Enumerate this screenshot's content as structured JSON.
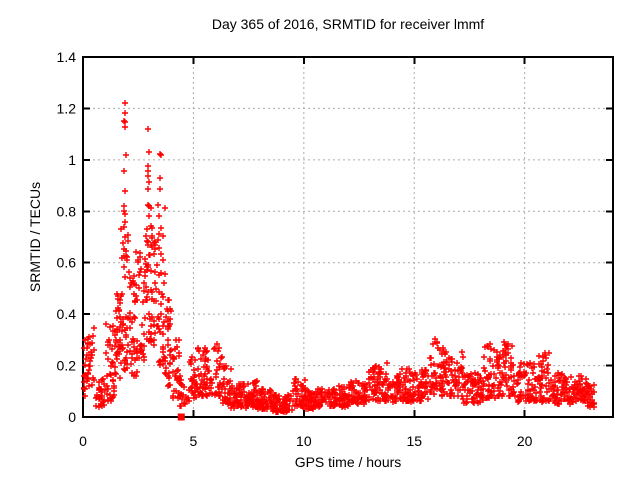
{
  "chart_data": {
    "type": "scatter",
    "title": "Day 365 of 2016, SRMTID for receiver lmmf",
    "xlabel": "GPS time / hours",
    "ylabel": "SRMTID / TECUs",
    "xlim": [
      0,
      24
    ],
    "ylim": [
      0,
      1.4
    ],
    "xticks": [
      0,
      5,
      10,
      15,
      20
    ],
    "xtick_labels": [
      "0",
      "5",
      "10",
      "15",
      "20"
    ],
    "yticks": [
      0,
      0.2,
      0.4,
      0.6,
      0.8,
      1.0,
      1.2,
      1.4
    ],
    "ytick_labels": [
      "0",
      "0.2",
      "0.4",
      "0.6",
      "0.8",
      "1",
      "1.2",
      "1.4"
    ],
    "grid": true,
    "grid_style": "dashed",
    "legend": "none",
    "marker": "plus",
    "colors": {
      "marker": "#ff0000",
      "grid": "#ababab",
      "border": "#000000",
      "background": "#ffffff",
      "text": "#000000"
    },
    "bands_format": "[t_start_hours, t_end_hours, n_points, y_min_TECU, y_max_TECU, skew_toward_min]",
    "bands": [
      [
        0.0,
        0.15,
        12,
        0.06,
        0.32,
        1.0
      ],
      [
        0.15,
        0.55,
        30,
        0.12,
        0.36,
        1.2
      ],
      [
        0.55,
        1.0,
        28,
        0.04,
        0.16,
        1.4
      ],
      [
        1.0,
        1.45,
        35,
        0.06,
        0.42,
        1.2
      ],
      [
        1.45,
        1.8,
        40,
        0.14,
        0.48,
        1.1
      ],
      [
        1.8,
        2.1,
        32,
        0.18,
        0.8,
        1.5
      ],
      [
        2.1,
        2.45,
        35,
        0.16,
        0.55,
        1.3
      ],
      [
        2.45,
        2.8,
        30,
        0.22,
        0.65,
        1.2
      ],
      [
        2.8,
        3.1,
        30,
        0.28,
        0.88,
        1.4
      ],
      [
        3.1,
        3.45,
        30,
        0.28,
        0.75,
        1.2
      ],
      [
        3.45,
        3.7,
        25,
        0.2,
        0.85,
        1.4
      ],
      [
        3.7,
        4.0,
        30,
        0.12,
        0.48,
        1.3
      ],
      [
        4.0,
        4.35,
        25,
        0.06,
        0.3,
        1.4
      ],
      [
        4.35,
        4.75,
        18,
        0.04,
        0.16,
        1.3
      ],
      [
        4.75,
        5.2,
        28,
        0.06,
        0.24,
        1.3
      ],
      [
        5.2,
        6.3,
        80,
        0.08,
        0.27,
        1.4
      ],
      [
        6.3,
        6.7,
        35,
        0.05,
        0.2,
        1.4
      ],
      [
        6.7,
        7.4,
        60,
        0.03,
        0.13,
        1.3
      ],
      [
        7.4,
        7.9,
        50,
        0.04,
        0.14,
        1.2
      ],
      [
        7.9,
        8.6,
        60,
        0.03,
        0.11,
        1.3
      ],
      [
        8.6,
        9.5,
        70,
        0.02,
        0.09,
        1.2
      ],
      [
        9.5,
        10.1,
        50,
        0.04,
        0.15,
        1.3
      ],
      [
        10.1,
        11.0,
        70,
        0.03,
        0.11,
        1.2
      ],
      [
        11.0,
        12.0,
        75,
        0.04,
        0.12,
        1.2
      ],
      [
        12.0,
        12.9,
        70,
        0.05,
        0.14,
        1.2
      ],
      [
        12.9,
        13.6,
        55,
        0.06,
        0.2,
        1.3
      ],
      [
        13.6,
        14.4,
        60,
        0.06,
        0.17,
        1.2
      ],
      [
        14.4,
        15.3,
        65,
        0.06,
        0.19,
        1.2
      ],
      [
        15.3,
        15.7,
        30,
        0.07,
        0.2,
        1.2
      ],
      [
        15.7,
        16.2,
        35,
        0.09,
        0.31,
        1.4
      ],
      [
        16.2,
        17.2,
        70,
        0.08,
        0.26,
        1.3
      ],
      [
        17.2,
        18.1,
        60,
        0.05,
        0.17,
        1.2
      ],
      [
        18.1,
        18.7,
        45,
        0.07,
        0.28,
        1.4
      ],
      [
        18.7,
        19.6,
        65,
        0.08,
        0.29,
        1.4
      ],
      [
        19.6,
        20.6,
        70,
        0.06,
        0.21,
        1.3
      ],
      [
        20.6,
        21.2,
        45,
        0.06,
        0.25,
        1.4
      ],
      [
        21.2,
        22.2,
        70,
        0.05,
        0.17,
        1.2
      ],
      [
        22.2,
        22.8,
        50,
        0.06,
        0.16,
        1.2
      ],
      [
        22.8,
        23.15,
        30,
        0.04,
        0.13,
        1.2
      ]
    ],
    "outlier_points": [
      [
        1.88,
        1.22
      ],
      [
        1.9,
        1.183
      ],
      [
        1.87,
        1.152
      ],
      [
        1.905,
        1.148
      ],
      [
        1.89,
        1.128
      ],
      [
        1.93,
        1.02
      ],
      [
        1.86,
        0.955
      ],
      [
        1.9,
        0.88
      ],
      [
        1.865,
        0.82
      ],
      [
        1.92,
        0.76
      ],
      [
        1.88,
        0.7
      ],
      [
        1.95,
        0.645
      ],
      [
        1.835,
        0.585
      ],
      [
        1.9,
        0.545
      ],
      [
        2.96,
        1.121
      ],
      [
        2.98,
        1.031
      ],
      [
        2.95,
        0.977
      ],
      [
        2.96,
        0.958
      ],
      [
        2.945,
        0.938
      ],
      [
        2.97,
        0.912
      ],
      [
        2.955,
        0.887
      ],
      [
        2.93,
        0.825
      ],
      [
        2.99,
        0.78
      ],
      [
        2.92,
        0.73
      ],
      [
        2.96,
        0.68
      ],
      [
        3.02,
        0.63
      ],
      [
        2.9,
        0.585
      ],
      [
        3.5,
        1.023
      ],
      [
        3.515,
        1.02
      ],
      [
        3.47,
        0.93
      ],
      [
        3.5,
        0.887
      ],
      [
        3.38,
        0.825
      ],
      [
        3.44,
        0.78
      ],
      [
        3.52,
        0.735
      ],
      [
        3.41,
        0.69
      ],
      [
        3.55,
        0.635
      ],
      [
        3.35,
        0.59
      ],
      [
        1.74,
        0.73
      ],
      [
        1.8,
        0.675
      ],
      [
        1.77,
        0.62
      ],
      [
        2.4,
        0.64
      ],
      [
        2.5,
        0.61
      ],
      [
        2.62,
        0.575
      ],
      [
        2.3,
        0.55
      ],
      [
        3.1,
        0.67
      ],
      [
        3.64,
        0.61
      ],
      [
        3.7,
        0.555
      ],
      [
        2.2,
        0.52
      ],
      [
        3.28,
        0.52
      ],
      [
        6.05,
        0.285
      ],
      [
        6.15,
        0.27
      ],
      [
        5.95,
        0.265
      ],
      [
        15.95,
        0.305
      ],
      [
        16.05,
        0.29
      ],
      [
        16.3,
        0.27
      ],
      [
        18.45,
        0.285
      ],
      [
        19.05,
        0.29
      ],
      [
        19.25,
        0.285
      ],
      [
        20.9,
        0.25
      ],
      [
        13.75,
        0.21
      ]
    ],
    "square_marker_point": [
      4.45,
      0.0
    ]
  }
}
